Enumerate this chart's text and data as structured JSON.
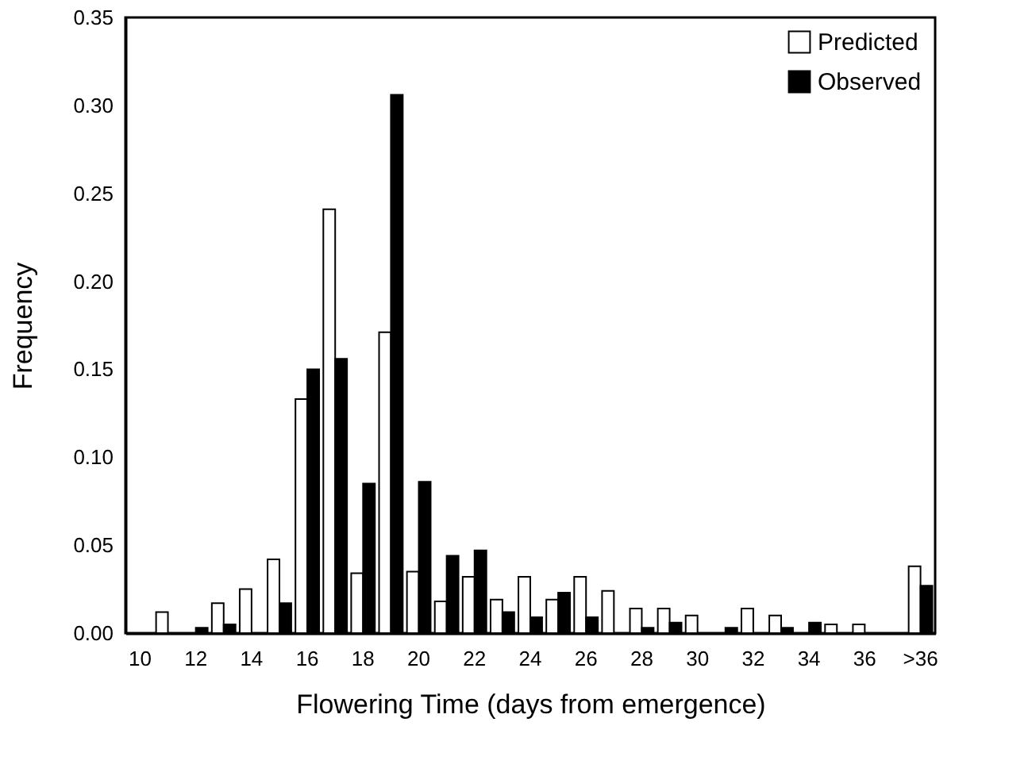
{
  "chart_data": {
    "type": "bar",
    "xlabel": "Flowering Time (days from emergence)",
    "ylabel": "Frequency",
    "categories": [
      "10",
      null,
      "12",
      null,
      "14",
      null,
      "16",
      null,
      "18",
      null,
      "20",
      null,
      "22",
      null,
      "24",
      null,
      "26",
      null,
      "28",
      null,
      "30",
      null,
      "32",
      null,
      "34",
      null,
      "36",
      null,
      ">36"
    ],
    "series": [
      {
        "name": "Predicted",
        "color": "#ffffff",
        "values": [
          0,
          0.012,
          0,
          0.017,
          0.025,
          0.042,
          0.133,
          0.241,
          0.034,
          0.171,
          0.035,
          0.018,
          0.032,
          0.019,
          0.032,
          0.019,
          0.032,
          0.024,
          0.014,
          0.014,
          0.01,
          0,
          0.014,
          0.01,
          0,
          0.005,
          0.005,
          0,
          0.038
        ]
      },
      {
        "name": "Observed",
        "color": "#000000",
        "values": [
          0,
          0,
          0.003,
          0.005,
          0,
          0.017,
          0.15,
          0.156,
          0.085,
          0.306,
          0.086,
          0.044,
          0.047,
          0.012,
          0.009,
          0.023,
          0.009,
          0,
          0.003,
          0.006,
          0,
          0.003,
          0,
          0.003,
          0.006,
          0,
          0,
          0,
          0.027
        ]
      }
    ],
    "ylim": [
      0,
      0.35
    ],
    "yticks": [
      {
        "value": 0,
        "label": "0.00"
      },
      {
        "value": 0.05,
        "label": "0.05"
      },
      {
        "value": 0.1,
        "label": "0.10"
      },
      {
        "value": 0.15,
        "label": "0.15"
      },
      {
        "value": 0.2,
        "label": "0.20"
      },
      {
        "value": 0.25,
        "label": "0.25"
      },
      {
        "value": 0.3,
        "label": "0.30"
      },
      {
        "value": 0.35,
        "label": "0.35"
      }
    ],
    "grid": false,
    "legend": "top right"
  }
}
